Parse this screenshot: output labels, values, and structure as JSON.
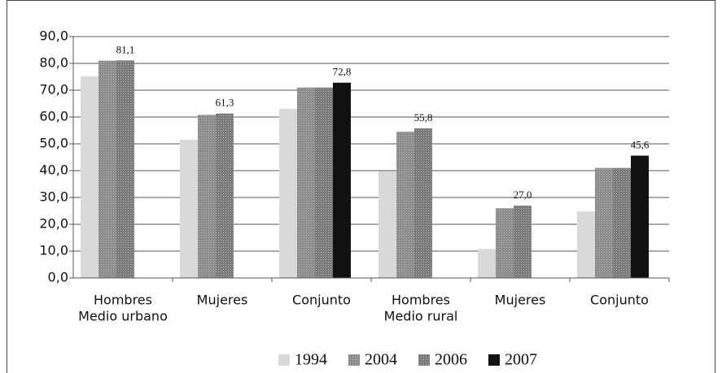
{
  "chart_data": {
    "type": "bar",
    "categories": [
      [
        "Hombres",
        "Medio urbano"
      ],
      [
        "Mujeres"
      ],
      [
        "Conjunto"
      ],
      [
        "Hombres",
        "Medio rural"
      ],
      [
        "Mujeres"
      ],
      [
        "Conjunto"
      ]
    ],
    "series": [
      {
        "name": "1994",
        "color": "#d9d9d9",
        "values": [
          75.2,
          51.5,
          63.0,
          39.8,
          10.8,
          24.8
        ],
        "value_labels": [
          null,
          null,
          null,
          null,
          null,
          null
        ]
      },
      {
        "name": "2004",
        "color": "#8c8c8c",
        "values": [
          81.0,
          60.8,
          71.0,
          54.5,
          26.0,
          41.0
        ],
        "value_labels": [
          null,
          null,
          null,
          null,
          null,
          null
        ]
      },
      {
        "name": "2006",
        "color": "#7a7a7a",
        "values": [
          81.1,
          61.3,
          71.0,
          55.8,
          27.0,
          41.0
        ],
        "value_labels": [
          "81,1",
          "61,3",
          null,
          "55,8",
          "27,0",
          null
        ]
      },
      {
        "name": "2007",
        "color": "#111111",
        "values": [
          null,
          null,
          72.8,
          null,
          null,
          45.6
        ],
        "value_labels": [
          null,
          null,
          "72,8",
          null,
          null,
          "45,6"
        ]
      }
    ],
    "ylim": [
      0,
      90
    ],
    "yticks": [
      {
        "value": 0,
        "label": "0,0"
      },
      {
        "value": 10,
        "label": "10,0"
      },
      {
        "value": 20,
        "label": "20,0"
      },
      {
        "value": 30,
        "label": "30,0"
      },
      {
        "value": 40,
        "label": "40,0"
      },
      {
        "value": 50,
        "label": "50,0"
      },
      {
        "value": 60,
        "label": "60,0"
      },
      {
        "value": 70,
        "label": "70,0"
      },
      {
        "value": 80,
        "label": "80,0"
      },
      {
        "value": 90,
        "label": "90,0"
      }
    ],
    "grid": true,
    "legend": "bottom"
  }
}
